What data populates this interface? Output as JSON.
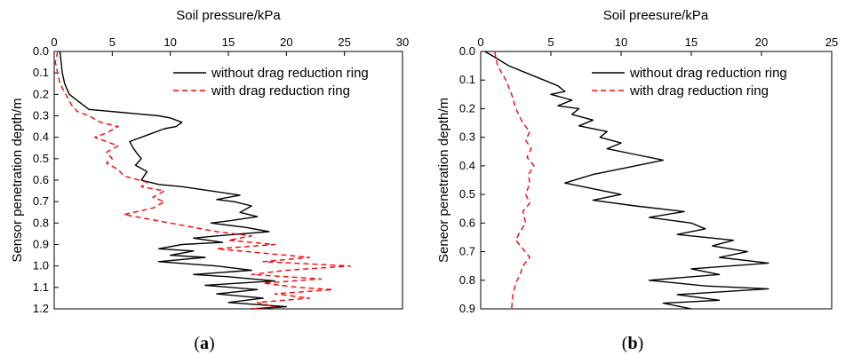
{
  "chart_data": [
    {
      "type": "line",
      "panel_label": "a",
      "caption_open": "(",
      "caption_close": ")",
      "xlabel": "Soil pressure/kPa",
      "ylabel": "Sensor penetration depth/m",
      "x_axis_position": "top",
      "y_axis_reversed": true,
      "xlim": [
        0,
        30
      ],
      "ylim": [
        0,
        1.2
      ],
      "xticks": [
        0,
        5,
        10,
        15,
        20,
        25,
        30
      ],
      "yticks": [
        0.0,
        0.1,
        0.2,
        0.3,
        0.4,
        0.5,
        0.6,
        0.7,
        0.8,
        0.9,
        1.0,
        1.1,
        1.2
      ],
      "legend_position": "top-right",
      "series": [
        {
          "name": "without drag reduction ring",
          "style": "solid",
          "color": "#000000",
          "points": [
            [
              0.5,
              0.0
            ],
            [
              0.6,
              0.05
            ],
            [
              0.7,
              0.1
            ],
            [
              0.9,
              0.15
            ],
            [
              1.3,
              0.2
            ],
            [
              2.5,
              0.25
            ],
            [
              3.0,
              0.27
            ],
            [
              5.0,
              0.28
            ],
            [
              7.0,
              0.29
            ],
            [
              9.0,
              0.3
            ],
            [
              10.0,
              0.31
            ],
            [
              11.0,
              0.33
            ],
            [
              10.5,
              0.35
            ],
            [
              9.5,
              0.36
            ],
            [
              8.5,
              0.38
            ],
            [
              7.5,
              0.4
            ],
            [
              6.5,
              0.42
            ],
            [
              6.8,
              0.45
            ],
            [
              7.2,
              0.48
            ],
            [
              7.5,
              0.5
            ],
            [
              7.0,
              0.53
            ],
            [
              8.0,
              0.56
            ],
            [
              7.5,
              0.6
            ],
            [
              9.0,
              0.62
            ],
            [
              11.0,
              0.63
            ],
            [
              13.5,
              0.65
            ],
            [
              16.0,
              0.67
            ],
            [
              14.0,
              0.69
            ],
            [
              15.5,
              0.7
            ],
            [
              17.0,
              0.72
            ],
            [
              16.0,
              0.75
            ],
            [
              17.5,
              0.77
            ],
            [
              15.0,
              0.79
            ],
            [
              13.5,
              0.8
            ],
            [
              16.5,
              0.82
            ],
            [
              18.5,
              0.84
            ],
            [
              14.0,
              0.86
            ],
            [
              12.0,
              0.87
            ],
            [
              14.5,
              0.89
            ],
            [
              11.0,
              0.9
            ],
            [
              9.0,
              0.92
            ],
            [
              12.0,
              0.93
            ],
            [
              10.0,
              0.95
            ],
            [
              13.0,
              0.96
            ],
            [
              9.0,
              0.98
            ],
            [
              14.0,
              1.0
            ],
            [
              17.0,
              1.02
            ],
            [
              12.0,
              1.04
            ],
            [
              15.0,
              1.05
            ],
            [
              19.0,
              1.07
            ],
            [
              13.0,
              1.09
            ],
            [
              17.5,
              1.11
            ],
            [
              14.0,
              1.13
            ],
            [
              18.0,
              1.15
            ],
            [
              15.0,
              1.17
            ],
            [
              20.0,
              1.19
            ],
            [
              17.0,
              1.2
            ]
          ]
        },
        {
          "name": "with drag reduction ring",
          "style": "dashed",
          "color": "#ff0000",
          "points": [
            [
              0.3,
              0.0
            ],
            [
              0.1,
              0.05
            ],
            [
              0.3,
              0.1
            ],
            [
              0.5,
              0.15
            ],
            [
              1.0,
              0.2
            ],
            [
              1.5,
              0.25
            ],
            [
              2.0,
              0.28
            ],
            [
              3.0,
              0.3
            ],
            [
              4.0,
              0.33
            ],
            [
              5.5,
              0.35
            ],
            [
              4.5,
              0.38
            ],
            [
              3.5,
              0.4
            ],
            [
              4.5,
              0.42
            ],
            [
              5.5,
              0.44
            ],
            [
              4.5,
              0.47
            ],
            [
              5.0,
              0.5
            ],
            [
              4.5,
              0.52
            ],
            [
              5.5,
              0.55
            ],
            [
              6.0,
              0.58
            ],
            [
              8.0,
              0.61
            ],
            [
              7.5,
              0.63
            ],
            [
              9.5,
              0.65
            ],
            [
              8.5,
              0.68
            ],
            [
              9.5,
              0.7
            ],
            [
              8.5,
              0.73
            ],
            [
              6.0,
              0.76
            ],
            [
              8.0,
              0.78
            ],
            [
              10.0,
              0.8
            ],
            [
              12.0,
              0.82
            ],
            [
              14.0,
              0.84
            ],
            [
              17.0,
              0.86
            ],
            [
              15.0,
              0.88
            ],
            [
              19.0,
              0.9
            ],
            [
              14.0,
              0.92
            ],
            [
              18.0,
              0.94
            ],
            [
              22.0,
              0.96
            ],
            [
              18.0,
              0.98
            ],
            [
              25.5,
              1.0
            ],
            [
              20.0,
              1.02
            ],
            [
              17.0,
              1.04
            ],
            [
              23.0,
              1.06
            ],
            [
              18.0,
              1.08
            ],
            [
              21.0,
              1.1
            ],
            [
              24.0,
              1.11
            ],
            [
              19.0,
              1.13
            ],
            [
              22.0,
              1.15
            ],
            [
              17.5,
              1.17
            ],
            [
              19.0,
              1.19
            ],
            [
              17.0,
              1.2
            ]
          ]
        }
      ]
    },
    {
      "type": "line",
      "panel_label": "b",
      "caption_open": "(",
      "caption_close": ")",
      "xlabel": "Soil preesure/kPa",
      "ylabel": "Seneor penetration depth/m",
      "x_axis_position": "top",
      "y_axis_reversed": true,
      "xlim": [
        0,
        25
      ],
      "ylim": [
        0,
        0.9
      ],
      "xticks": [
        0,
        5,
        10,
        15,
        20,
        25
      ],
      "yticks": [
        0.0,
        0.1,
        0.2,
        0.3,
        0.4,
        0.5,
        0.6,
        0.7,
        0.8,
        0.9
      ],
      "legend_position": "top-right",
      "series": [
        {
          "name": "without drag reduction ring",
          "style": "solid",
          "color": "#000000",
          "points": [
            [
              0.3,
              0.0
            ],
            [
              1.0,
              0.02
            ],
            [
              2.0,
              0.05
            ],
            [
              3.5,
              0.08
            ],
            [
              4.5,
              0.1
            ],
            [
              5.5,
              0.12
            ],
            [
              6.0,
              0.14
            ],
            [
              5.0,
              0.15
            ],
            [
              6.5,
              0.17
            ],
            [
              5.5,
              0.19
            ],
            [
              7.0,
              0.2
            ],
            [
              6.5,
              0.22
            ],
            [
              8.0,
              0.24
            ],
            [
              7.0,
              0.26
            ],
            [
              9.0,
              0.28
            ],
            [
              8.5,
              0.3
            ],
            [
              10.0,
              0.32
            ],
            [
              9.0,
              0.34
            ],
            [
              11.0,
              0.36
            ],
            [
              13.0,
              0.38
            ],
            [
              11.0,
              0.4
            ],
            [
              8.0,
              0.43
            ],
            [
              6.0,
              0.46
            ],
            [
              8.0,
              0.48
            ],
            [
              10.0,
              0.5
            ],
            [
              8.0,
              0.52
            ],
            [
              11.0,
              0.54
            ],
            [
              14.5,
              0.56
            ],
            [
              12.0,
              0.58
            ],
            [
              15.0,
              0.6
            ],
            [
              16.0,
              0.62
            ],
            [
              14.0,
              0.64
            ],
            [
              18.0,
              0.66
            ],
            [
              16.5,
              0.68
            ],
            [
              19.0,
              0.7
            ],
            [
              17.0,
              0.72
            ],
            [
              20.5,
              0.74
            ],
            [
              15.0,
              0.76
            ],
            [
              17.0,
              0.78
            ],
            [
              12.0,
              0.8
            ],
            [
              16.0,
              0.82
            ],
            [
              20.5,
              0.83
            ],
            [
              14.0,
              0.85
            ],
            [
              17.0,
              0.87
            ],
            [
              13.0,
              0.88
            ],
            [
              15.0,
              0.9
            ]
          ]
        },
        {
          "name": "with drag reduction ring",
          "style": "dashed",
          "color": "#ff0000",
          "points": [
            [
              1.0,
              0.0
            ],
            [
              1.2,
              0.05
            ],
            [
              1.8,
              0.1
            ],
            [
              2.2,
              0.15
            ],
            [
              2.5,
              0.2
            ],
            [
              3.0,
              0.25
            ],
            [
              3.5,
              0.28
            ],
            [
              3.2,
              0.31
            ],
            [
              3.6,
              0.34
            ],
            [
              3.3,
              0.37
            ],
            [
              3.8,
              0.4
            ],
            [
              3.4,
              0.43
            ],
            [
              3.5,
              0.46
            ],
            [
              3.2,
              0.5
            ],
            [
              3.5,
              0.53
            ],
            [
              3.0,
              0.56
            ],
            [
              3.2,
              0.6
            ],
            [
              2.8,
              0.63
            ],
            [
              2.5,
              0.66
            ],
            [
              3.0,
              0.69
            ],
            [
              3.5,
              0.72
            ],
            [
              3.0,
              0.75
            ],
            [
              2.8,
              0.78
            ],
            [
              2.5,
              0.81
            ],
            [
              2.3,
              0.85
            ],
            [
              2.2,
              0.9
            ]
          ]
        }
      ]
    }
  ]
}
